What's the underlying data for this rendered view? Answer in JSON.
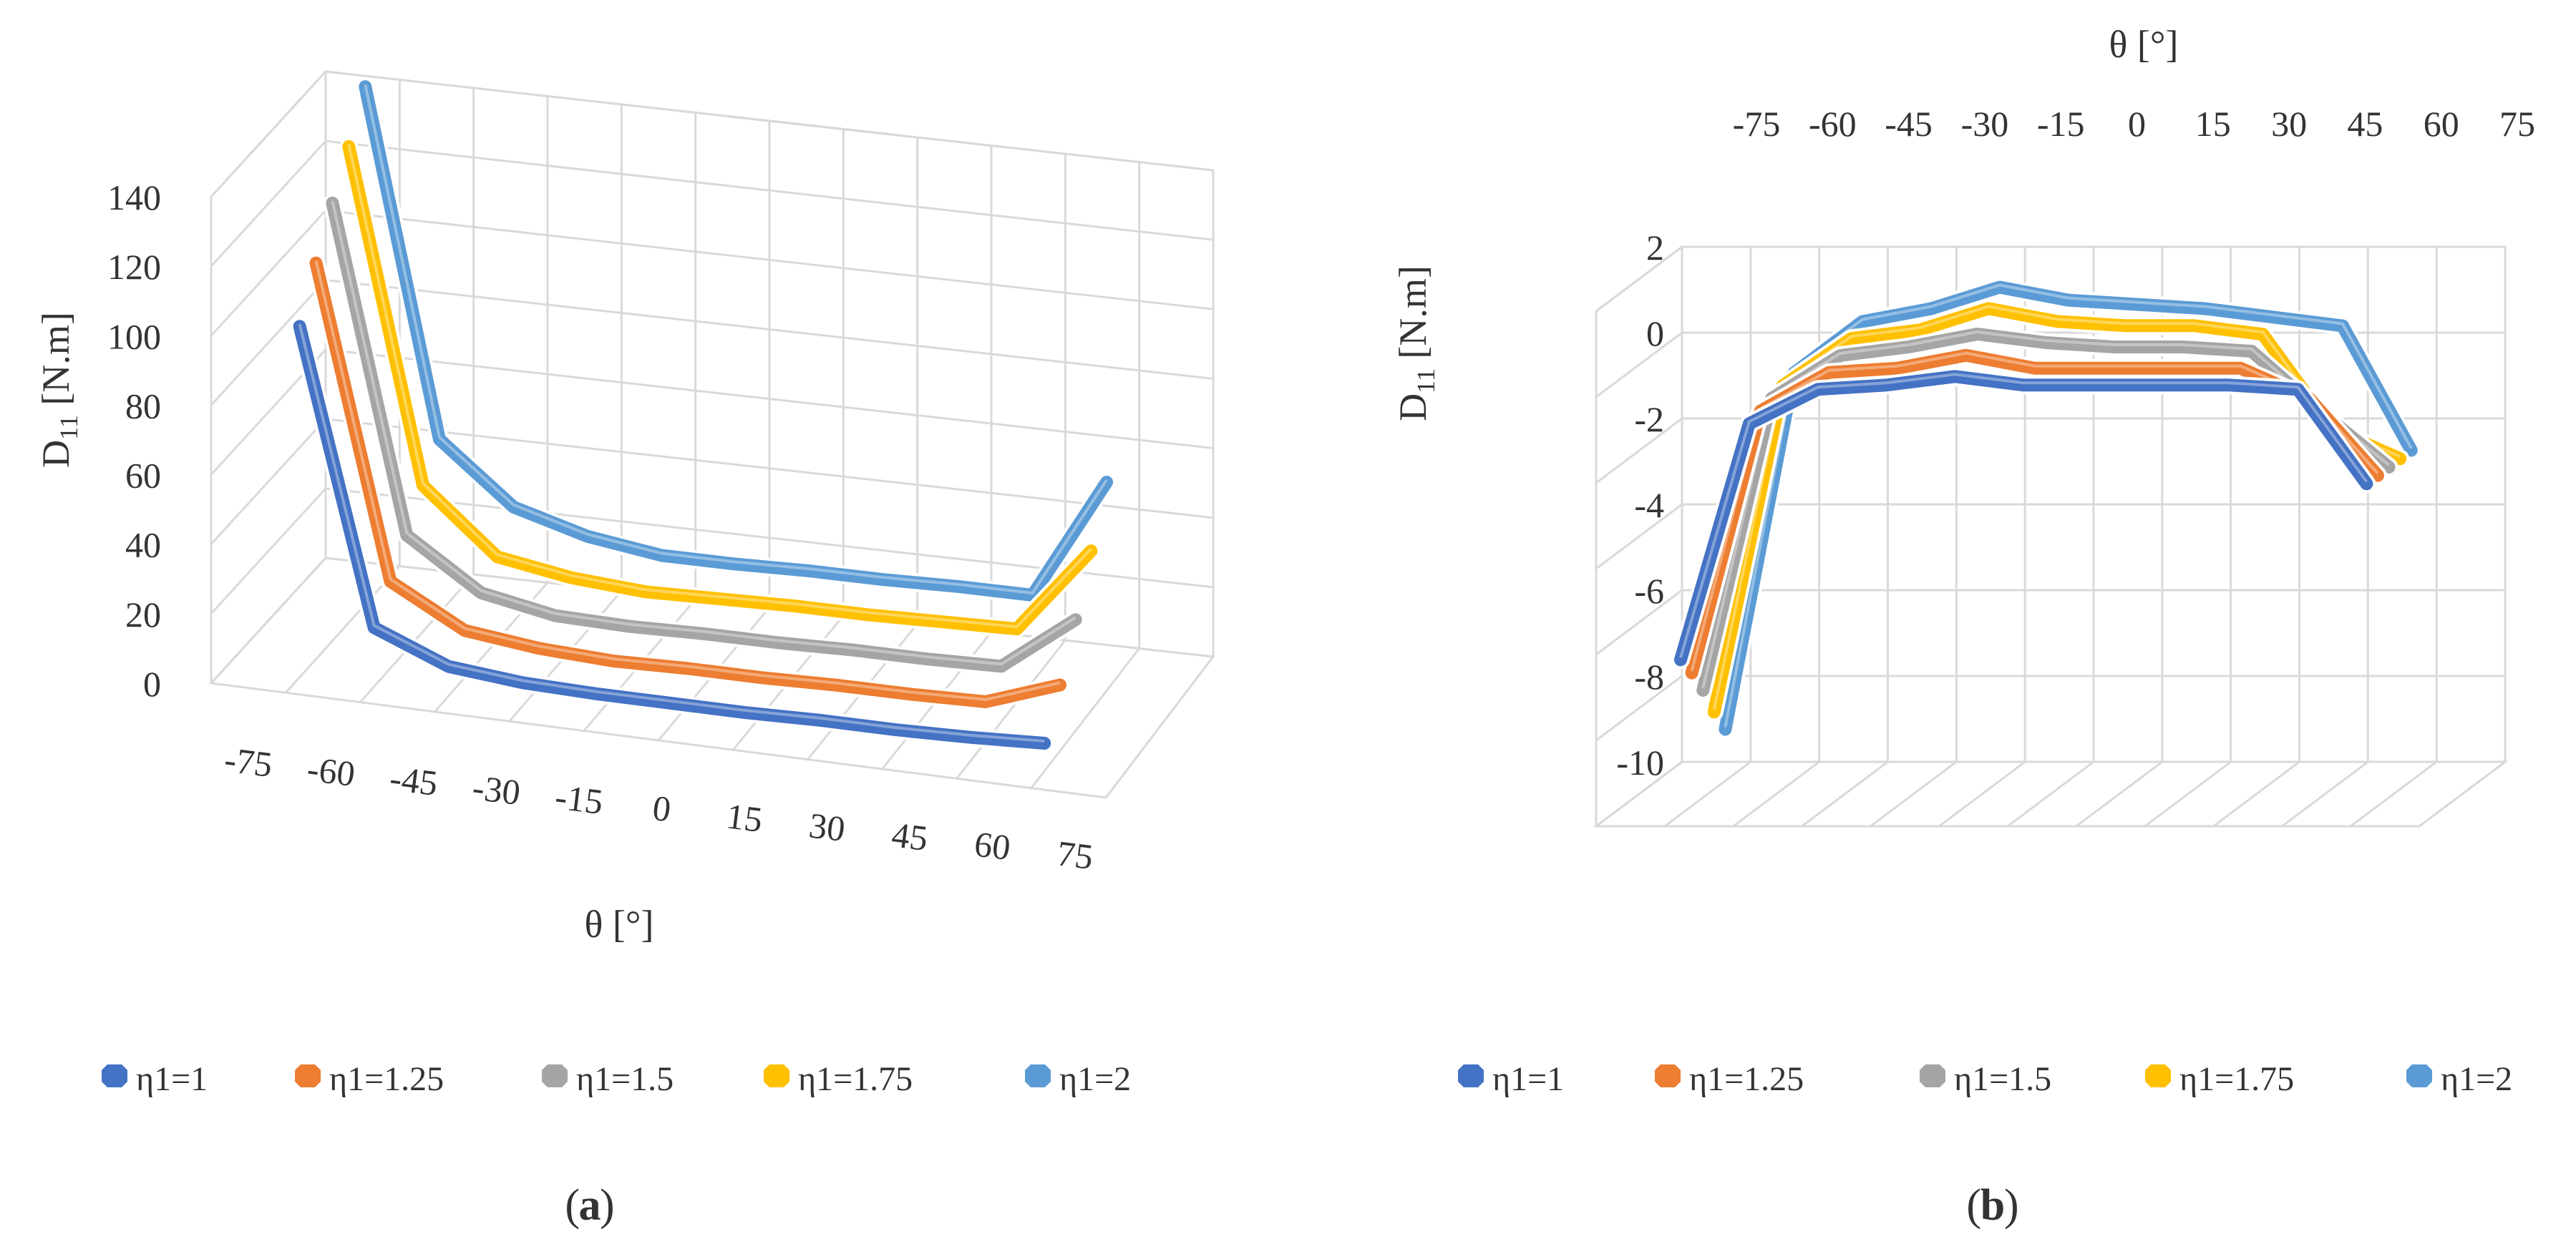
{
  "chart_data": [
    {
      "panel_label": "a",
      "type": "line",
      "projection": "3d-line",
      "title": "",
      "xlabel": "θ [°]",
      "ylabel": "D11 [N.m]",
      "ylabel_main": "D",
      "ylabel_sub": "11",
      "ylabel_unit": " [N.m]",
      "categories": [
        -75,
        -60,
        -45,
        -30,
        -15,
        0,
        15,
        30,
        45,
        60,
        75
      ],
      "x_tick_labels": [
        "-75",
        "-60",
        "-45",
        "-30",
        "-15",
        "0",
        "15",
        "30",
        "45",
        "60",
        "75"
      ],
      "y_ticks": [
        0,
        20,
        40,
        60,
        80,
        100,
        120,
        140
      ],
      "y_tick_labels": [
        "0",
        "20",
        "40",
        "60",
        "80",
        "100",
        "120",
        "140"
      ],
      "ylim": [
        0,
        140
      ],
      "grid": true,
      "legend_position": "bottom",
      "series": [
        {
          "name": "η1=1",
          "color": "#4472C4",
          "values": [
            101,
            17,
            8.5,
            6.5,
            6,
            6,
            6,
            6.5,
            6.5,
            7,
            8
          ]
        },
        {
          "name": "η1=1.25",
          "color": "#ED7D31",
          "values": [
            114,
            25,
            13.5,
            11,
            10,
            10.5,
            10.5,
            11,
            11,
            11.5,
            19
          ]
        },
        {
          "name": "η1=1.5",
          "color": "#A5A5A5",
          "values": [
            126,
            33,
            19,
            15,
            14.5,
            15,
            15,
            15.5,
            15.5,
            16,
            32
          ]
        },
        {
          "name": "η1=1.75",
          "color": "#FFC000",
          "values": [
            137,
            42,
            24,
            20.5,
            19,
            19.5,
            20,
            20,
            20.5,
            21,
            46
          ]
        },
        {
          "name": "η1=2",
          "color": "#5B9BD5",
          "values": [
            149,
            50,
            33,
            27,
            24,
            24,
            24.5,
            24.5,
            25,
            25,
            60
          ]
        }
      ]
    },
    {
      "panel_label": "b",
      "type": "line",
      "projection": "3d-line",
      "title": "",
      "xlabel": "θ [°]",
      "ylabel": "D11 [N.m]",
      "ylabel_main": "D",
      "ylabel_sub": "11",
      "ylabel_unit": " [N.m]",
      "categories": [
        -75,
        -60,
        -45,
        -30,
        -15,
        0,
        15,
        30,
        45,
        60,
        75
      ],
      "x_tick_labels": [
        "-75",
        "-60",
        "-45",
        "-30",
        "-15",
        "0",
        "15",
        "30",
        "45",
        "60",
        "75"
      ],
      "y_ticks": [
        -10,
        -8,
        -6,
        -4,
        -2,
        0,
        2
      ],
      "y_tick_labels": [
        "-10",
        "-8",
        "-6",
        "-4",
        "-2",
        "0",
        "2"
      ],
      "ylim": [
        -10,
        2
      ],
      "grid": true,
      "legend_position": "bottom",
      "series": [
        {
          "name": "η1=1",
          "color": "#4472C4",
          "values": [
            -6.4,
            -0.9,
            -0.1,
            0,
            0.2,
            0,
            0,
            0,
            0,
            -0.1,
            -2.3
          ]
        },
        {
          "name": "η1=1.25",
          "color": "#ED7D31",
          "values": [
            -6.9,
            -0.8,
            0.1,
            0.2,
            0.5,
            0.2,
            0.2,
            0.2,
            0.2,
            -0.5,
            -2.3
          ]
        },
        {
          "name": "η1=1.5",
          "color": "#A5A5A5",
          "values": [
            -7.5,
            -0.7,
            0.3,
            0.5,
            0.8,
            0.6,
            0.5,
            0.5,
            0.4,
            -1.0,
            -2.3
          ]
        },
        {
          "name": "η1=1.75",
          "color": "#FFC000",
          "values": [
            -8.2,
            -0.6,
            0.5,
            0.7,
            1.2,
            0.9,
            0.8,
            0.8,
            0.6,
            -1.6,
            -2.3
          ]
        },
        {
          "name": "η1=2",
          "color": "#5B9BD5",
          "values": [
            -8.8,
            -0.5,
            0.7,
            1.0,
            1.5,
            1.2,
            1.1,
            1.0,
            0.8,
            0.6,
            -2.3
          ]
        }
      ]
    }
  ],
  "captions": [
    "a",
    "b"
  ]
}
